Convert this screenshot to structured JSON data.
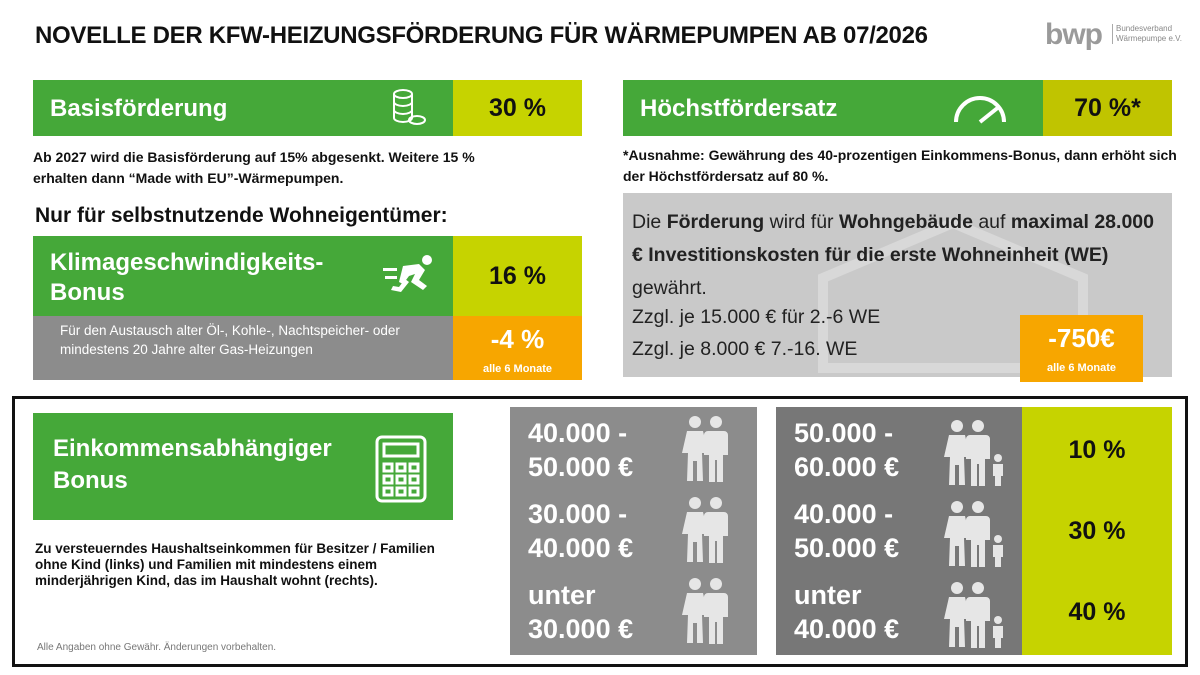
{
  "header": {
    "title": "NOVELLE DER KFW-HEIZUNGSFÖRDERUNG FÜR WÄRMEPUMPEN AB 07/2026",
    "logo": "bwp",
    "logo_lines": [
      "Bundesverband",
      "Wärmepumpe e.V."
    ]
  },
  "basis": {
    "label": "Basisförderung",
    "value": "30 %",
    "note": "Ab 2027 wird die Basisförderung auf 15% abgesenkt. Weitere 15 % erhalten dann “Made with EU”-Wärmepumpen."
  },
  "hoechst": {
    "label": "Höchstfördersatz",
    "value": "70 %*",
    "note": "*Ausnahme: Gewährung des 40-prozentigen Einkommens-Bonus, dann erhöht sich der Höchstfördersatz auf 80 %."
  },
  "subheading": "Nur für selbstnutzende Wohneigentümer:",
  "klima": {
    "label_lines": [
      "Klimageschwindigkeits-",
      "Bonus"
    ],
    "value": "16 %",
    "note": "Für den Austausch alter Öl-, Kohle-, Nachtspeicher- oder mindestens 20 Jahre alter Gas-Heizungen",
    "reduction": "-4 %",
    "reduction_note": "alle 6 Monate"
  },
  "cap": {
    "runs": [
      {
        "text": "Die ",
        "bold": false
      },
      {
        "text": "Förderung",
        "bold": true
      },
      {
        "text": " wird für ",
        "bold": false
      },
      {
        "text": "Wohngebäude",
        "bold": true
      },
      {
        "text": " auf ",
        "bold": false
      },
      {
        "text": "maximal 28.000 € Investitionskosten für die erste Wohneinheit (WE)",
        "bold": true
      },
      {
        "text": " gewährt.",
        "bold": false
      }
    ],
    "extra": [
      "Zzgl. je 15.000 € für 2.-6 WE",
      "Zzgl. je 8.000 € 7.-16. WE"
    ],
    "reduction": "-750€",
    "reduction_note": "alle 6 Monate"
  },
  "income": {
    "label_lines": [
      "Einkommensabhängiger",
      "Bonus"
    ],
    "note": "Zu versteuerndes Haushaltseinkommen für Besitzer / Familien ohne Kind (links) und Familien mit mindestens einem minderjährigen Kind, das im Haushalt wohnt (rechts).",
    "footnote": "Alle Angaben ohne Gewähr. Änderungen vorbehalten.",
    "rows": [
      {
        "left": [
          "40.000 -",
          "50.000 €"
        ],
        "right": [
          "50.000 -",
          "60.000 €"
        ],
        "bonus": "10 %"
      },
      {
        "left": [
          "30.000 -",
          "40.000 €"
        ],
        "right": [
          "40.000 -",
          "50.000 €"
        ],
        "bonus": "30 %"
      },
      {
        "left": [
          "unter",
          "30.000 €"
        ],
        "right": [
          "unter",
          "40.000 €"
        ],
        "bonus": "40 %"
      }
    ]
  }
}
